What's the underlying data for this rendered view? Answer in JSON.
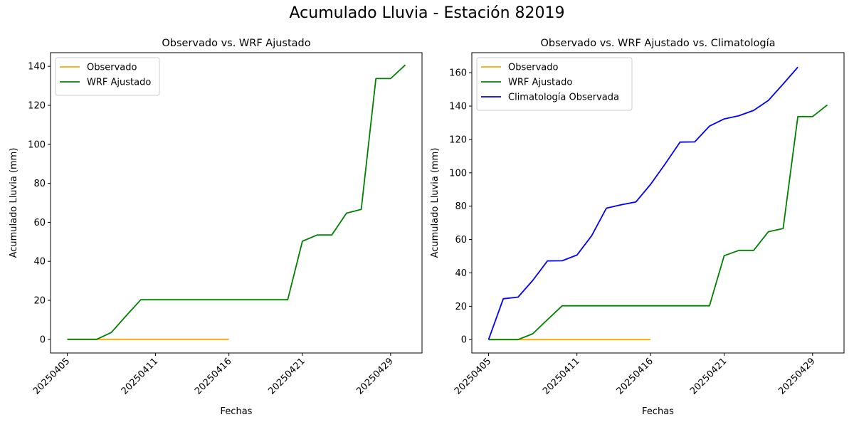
{
  "figure": {
    "suptitle": "Acumulado Lluvia - Estación 82019"
  },
  "colors": {
    "observado": "#ffa500",
    "wrf": "#008000",
    "climatologia": "#0000ff"
  },
  "chart_data": [
    {
      "type": "line",
      "title": "Observado vs. WRF Ajustado",
      "xlabel": "Fechas",
      "ylabel": "Acumulado Lluvia (mm)",
      "x": [
        "20250405",
        "20250406",
        "20250407",
        "20250408",
        "20250409",
        "20250410",
        "20250411",
        "20250412",
        "20250413",
        "20250414",
        "20250415",
        "20250416",
        "20250417",
        "20250418",
        "20250419",
        "20250420",
        "20250421",
        "20250422",
        "20250423",
        "20250424",
        "20250425",
        "20250426",
        "20250429",
        "20250430"
      ],
      "xticks": [
        "20250405",
        "20250411",
        "20250416",
        "20250421",
        "20250429"
      ],
      "yticks": [
        0,
        20,
        40,
        60,
        80,
        100,
        120,
        140
      ],
      "ylim": [
        -7,
        147
      ],
      "legend": "upper-left",
      "series": [
        {
          "name": "Observado",
          "color": "#ffa500",
          "x": [
            "20250405",
            "20250406",
            "20250407",
            "20250408",
            "20250409",
            "20250410",
            "20250411",
            "20250412",
            "20250413",
            "20250414",
            "20250415",
            "20250416"
          ],
          "values": [
            0,
            0,
            0,
            0,
            0,
            0,
            0,
            0,
            0,
            0,
            0,
            0
          ]
        },
        {
          "name": "WRF Ajustado",
          "color": "#008000",
          "x": [
            "20250405",
            "20250406",
            "20250407",
            "20250408",
            "20250409",
            "20250410",
            "20250411",
            "20250412",
            "20250413",
            "20250414",
            "20250415",
            "20250416",
            "20250417",
            "20250418",
            "20250419",
            "20250420",
            "20250421",
            "20250422",
            "20250423",
            "20250424",
            "20250425",
            "20250426",
            "20250429",
            "20250430"
          ],
          "values": [
            0,
            0,
            0,
            3.5,
            12,
            20.3,
            20.3,
            20.3,
            20.3,
            20.3,
            20.3,
            20.3,
            20.3,
            20.3,
            20.3,
            20.3,
            50.3,
            53.5,
            53.5,
            64.7,
            66.6,
            133.7,
            133.7,
            140.7
          ]
        }
      ]
    },
    {
      "type": "line",
      "title": "Observado vs. WRF Ajustado vs. Climatología",
      "xlabel": "Fechas",
      "ylabel": "Acumulado Lluvia (mm)",
      "x": [
        "20250405",
        "20250406",
        "20250407",
        "20250408",
        "20250409",
        "20250410",
        "20250411",
        "20250412",
        "20250413",
        "20250414",
        "20250415",
        "20250416",
        "20250417",
        "20250418",
        "20250419",
        "20250420",
        "20250421",
        "20250422",
        "20250423",
        "20250424",
        "20250425",
        "20250426",
        "20250429",
        "20250430"
      ],
      "xticks": [
        "20250405",
        "20250411",
        "20250416",
        "20250421",
        "20250429"
      ],
      "yticks": [
        0,
        20,
        40,
        60,
        80,
        100,
        120,
        140,
        160
      ],
      "ylim": [
        -8,
        172
      ],
      "legend": "upper-left",
      "series": [
        {
          "name": "Observado",
          "color": "#ffa500",
          "x": [
            "20250405",
            "20250406",
            "20250407",
            "20250408",
            "20250409",
            "20250410",
            "20250411",
            "20250412",
            "20250413",
            "20250414",
            "20250415",
            "20250416"
          ],
          "values": [
            0,
            0,
            0,
            0,
            0,
            0,
            0,
            0,
            0,
            0,
            0,
            0
          ]
        },
        {
          "name": "WRF Ajustado",
          "color": "#008000",
          "x": [
            "20250405",
            "20250406",
            "20250407",
            "20250408",
            "20250409",
            "20250410",
            "20250411",
            "20250412",
            "20250413",
            "20250414",
            "20250415",
            "20250416",
            "20250417",
            "20250418",
            "20250419",
            "20250420",
            "20250421",
            "20250422",
            "20250423",
            "20250424",
            "20250425",
            "20250426",
            "20250429",
            "20250430"
          ],
          "values": [
            0,
            0,
            0,
            3.5,
            12,
            20.3,
            20.3,
            20.3,
            20.3,
            20.3,
            20.3,
            20.3,
            20.3,
            20.3,
            20.3,
            20.3,
            50.3,
            53.5,
            53.5,
            64.7,
            66.6,
            133.7,
            133.7,
            140.7
          ]
        },
        {
          "name": "Climatología Observada",
          "color": "#0000ff",
          "x": [
            "20250405",
            "20250406",
            "20250407",
            "20250408",
            "20250409",
            "20250410",
            "20250411",
            "20250412",
            "20250413",
            "20250414",
            "20250415",
            "20250416",
            "20250417",
            "20250418",
            "20250419",
            "20250420",
            "20250421",
            "20250422",
            "20250423",
            "20250424",
            "20250425",
            "20250426",
            "20250429",
            "20250430"
          ],
          "values": [
            0,
            24.5,
            25.5,
            35.5,
            47.2,
            47.3,
            50.7,
            62.3,
            78.8,
            80.8,
            82.5,
            93.1,
            105.4,
            118.4,
            118.5,
            128,
            132.3,
            134.2,
            137.4,
            143.4,
            153.2,
            163.3,
            null,
            null
          ]
        }
      ]
    }
  ]
}
